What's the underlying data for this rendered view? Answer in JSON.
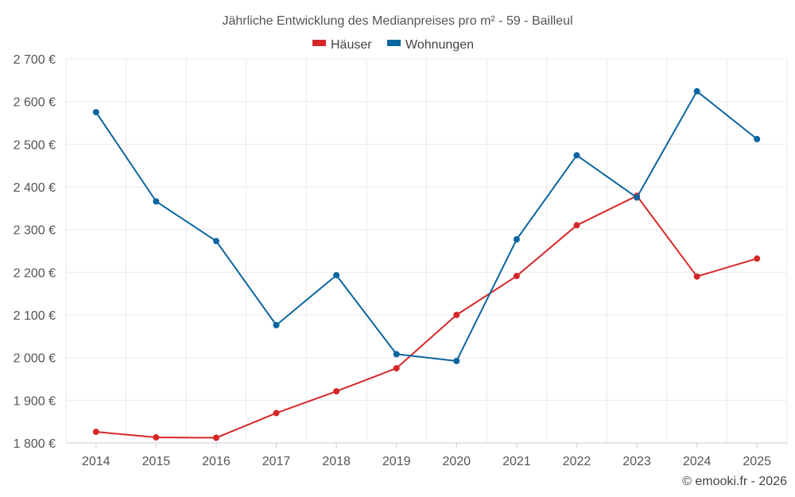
{
  "chart_data": {
    "type": "line",
    "title": "Jährliche Entwicklung des Medianpreises pro m² - 59 - Bailleul",
    "categories": [
      "2014",
      "2015",
      "2016",
      "2017",
      "2018",
      "2019",
      "2020",
      "2021",
      "2022",
      "2023",
      "2024",
      "2025"
    ],
    "series": [
      {
        "name": "Häuser",
        "color": "#d62728",
        "values": [
          1826,
          1813,
          1812,
          1870,
          1921,
          1975,
          2100,
          2191,
          2310,
          2379,
          2190,
          2232
        ]
      },
      {
        "name": "Wohnungen",
        "color": "#0b65a0",
        "values": [
          2575,
          2366,
          2273,
          2076,
          2193,
          2008,
          1992,
          2277,
          2474,
          2375,
          2624,
          2512
        ]
      }
    ],
    "ylim": [
      1800,
      2700
    ],
    "yticks": [
      1800,
      1900,
      2000,
      2100,
      2200,
      2300,
      2400,
      2500,
      2600,
      2700
    ],
    "ytick_labels": [
      "1 800 €",
      "1 900 €",
      "2 000 €",
      "2 100 €",
      "2 200 €",
      "2 300 €",
      "2 400 €",
      "2 500 €",
      "2 600 €",
      "2 700 €"
    ],
    "xlabel": "",
    "ylabel": "",
    "grid": true,
    "legend_position": "top-center"
  },
  "credit": "© emooki.fr - 2026"
}
